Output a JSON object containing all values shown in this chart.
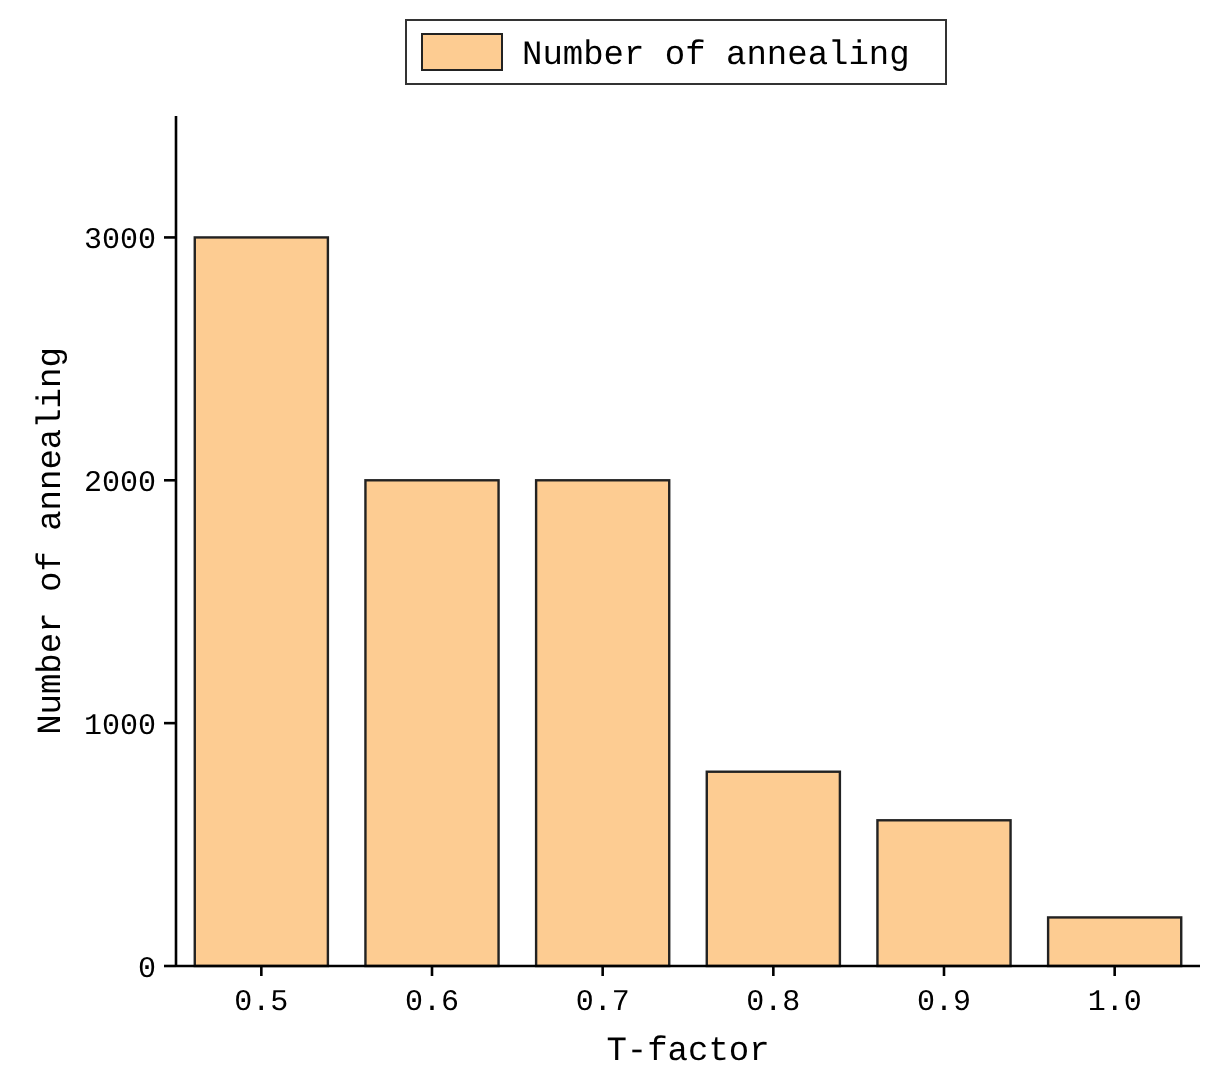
{
  "chart_data": {
    "type": "bar",
    "xlabel": "T-factor",
    "ylabel": "Number of annealing",
    "categories": [
      "0.5",
      "0.6",
      "0.7",
      "0.8",
      "0.9",
      "1.0"
    ],
    "series": [
      {
        "name": "Number of annealing",
        "color": "#fdcc92",
        "values": [
          3000,
          2000,
          2000,
          800,
          600,
          200
        ]
      }
    ],
    "ylim": [
      0,
      3500
    ],
    "yticks": [
      0,
      1000,
      2000,
      3000
    ],
    "legend": "top",
    "grid": false
  }
}
